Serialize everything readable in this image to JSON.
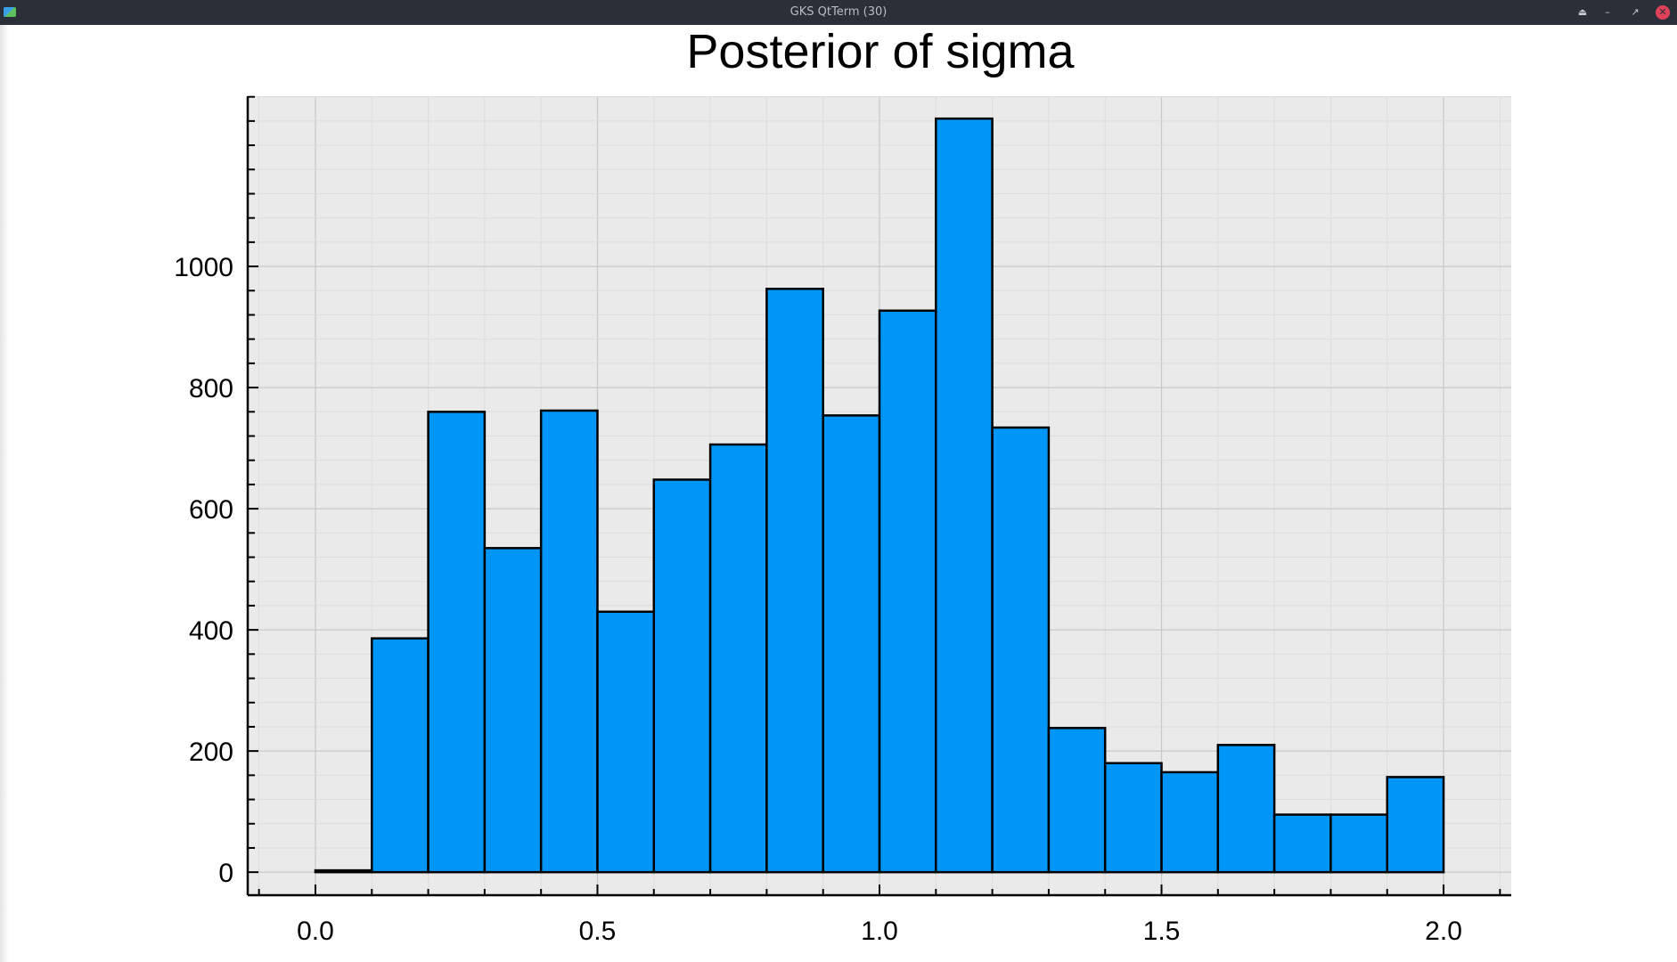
{
  "window": {
    "title": "GKS QtTerm (30)"
  },
  "icons": {
    "app": "app-icon",
    "shade": "eject-icon",
    "minimize": "minimize-icon",
    "maximize": "maximize-icon",
    "close": "close-icon"
  },
  "chart_data": {
    "type": "bar",
    "title": "Posterior of sigma",
    "xlabel": "",
    "ylabel": "",
    "bin_edges": [
      0.0,
      0.1,
      0.2,
      0.3,
      0.4,
      0.5,
      0.6,
      0.7,
      0.8,
      0.9,
      1.0,
      1.1,
      1.2,
      1.3,
      1.4,
      1.5,
      1.6,
      1.7,
      1.8,
      1.9,
      2.0
    ],
    "values": [
      3,
      386,
      760,
      535,
      762,
      430,
      648,
      706,
      963,
      754,
      927,
      1244,
      734,
      238,
      180,
      165,
      210,
      95,
      95,
      157
    ],
    "xlim": [
      -0.12,
      2.12
    ],
    "ylim": [
      -38,
      1281
    ],
    "xticks": [
      0.0,
      0.5,
      1.0,
      1.5,
      2.0
    ],
    "xtick_labels": [
      "0.0",
      "0.5",
      "1.0",
      "1.5",
      "2.0"
    ],
    "yticks": [
      0,
      200,
      400,
      600,
      800,
      1000
    ],
    "ytick_labels": [
      "0",
      "200",
      "400",
      "600",
      "800",
      "1000"
    ],
    "grid": true,
    "legend": false,
    "colors": {
      "bar_fill": "#0096f8",
      "bar_edge": "#000000",
      "plot_background": "#eaeaea",
      "major_grid": "#c8c8c8",
      "minor_grid": "#dcdcdc"
    }
  }
}
